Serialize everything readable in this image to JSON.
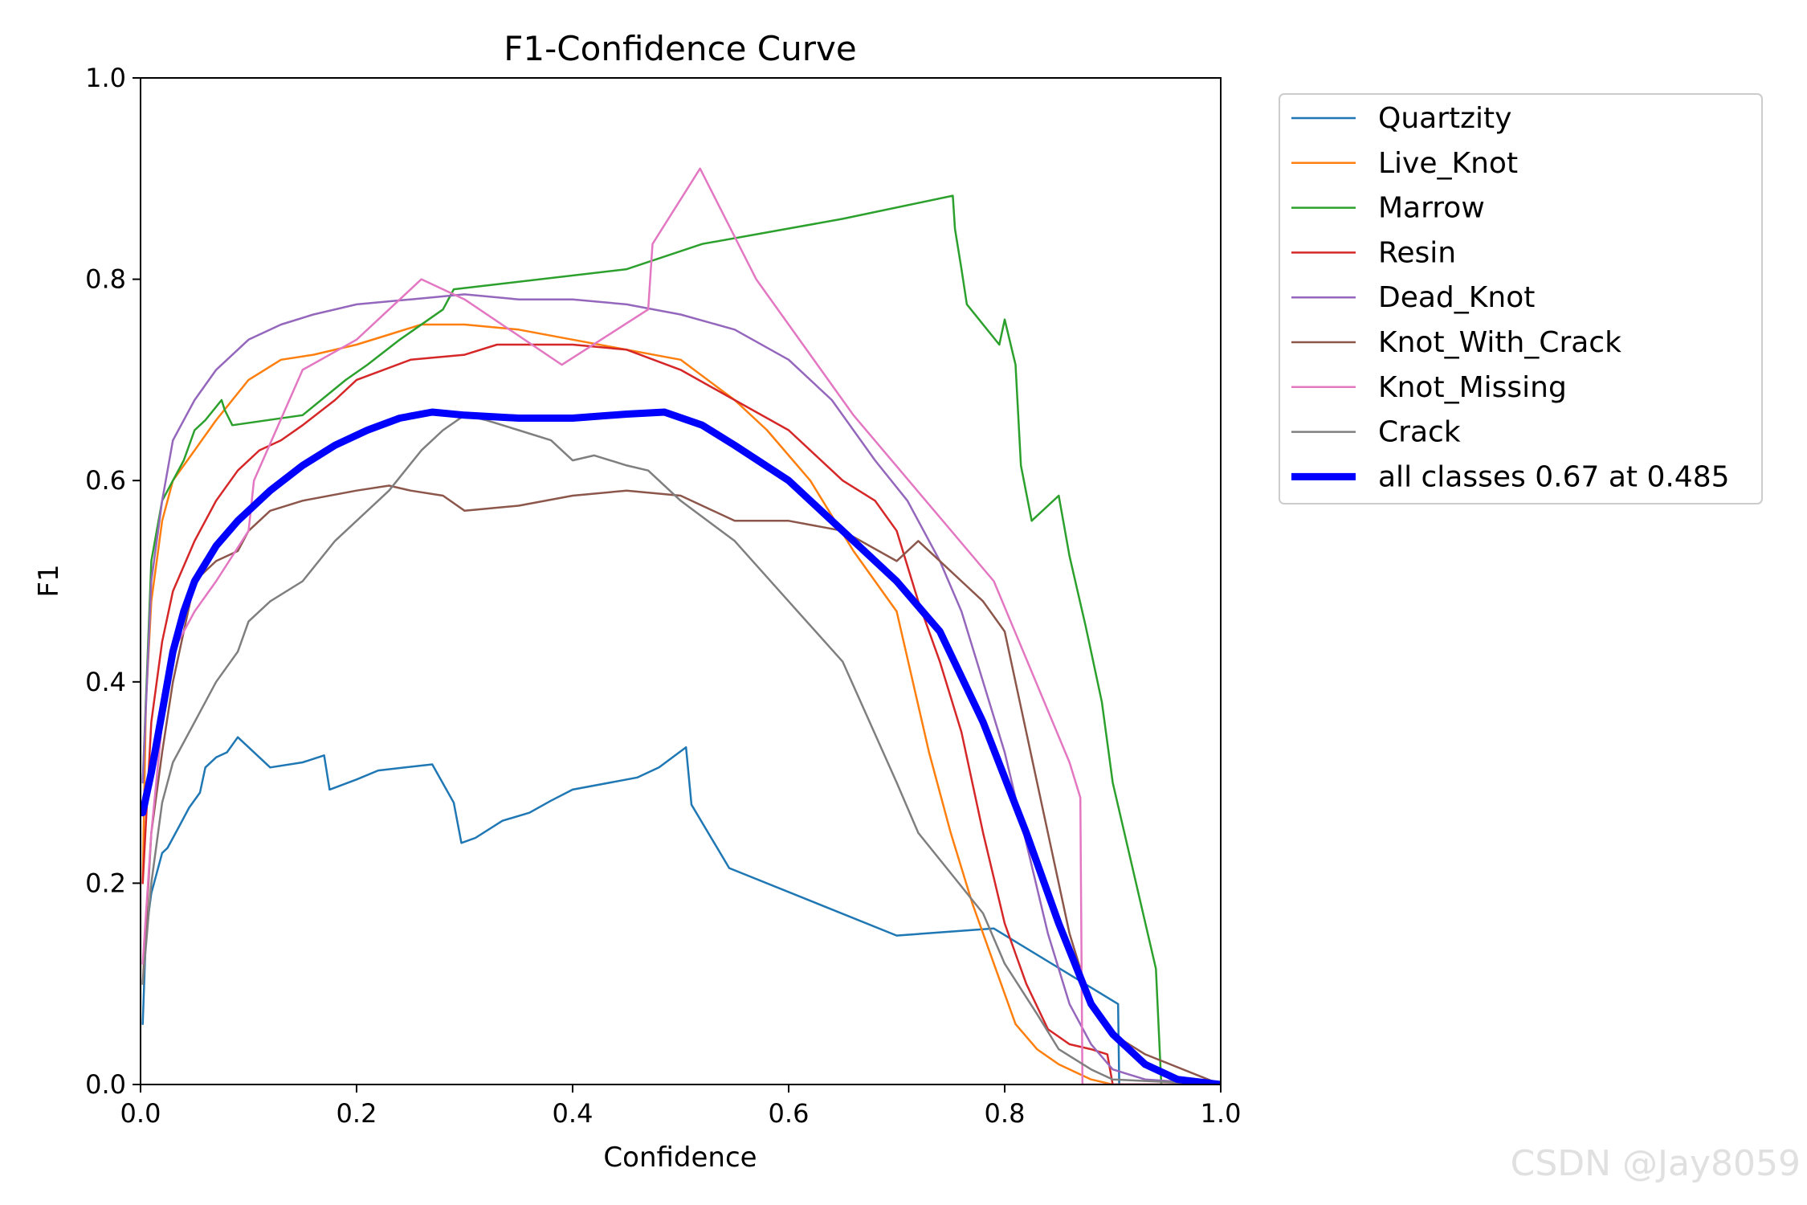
{
  "chart_data": {
    "type": "line",
    "title": "F1-Confidence Curve",
    "xlabel": "Confidence",
    "ylabel": "F1",
    "xlim": [
      0,
      1
    ],
    "ylim": [
      0,
      1
    ],
    "xticks": [
      0.0,
      0.2,
      0.4,
      0.6,
      0.8,
      1.0
    ],
    "yticks": [
      0.0,
      0.2,
      0.4,
      0.6,
      0.8,
      1.0
    ],
    "xtick_labels": [
      "0.0",
      "0.2",
      "0.4",
      "0.6",
      "0.8",
      "1.0"
    ],
    "ytick_labels": [
      "0.0",
      "0.2",
      "0.4",
      "0.6",
      "0.8",
      "1.0"
    ],
    "legend_position": "outside-right-top",
    "series": [
      {
        "name": "Quartzity",
        "color": "#1f77b4",
        "width": "thin",
        "x": [
          0.002,
          0.005,
          0.01,
          0.02,
          0.025,
          0.035,
          0.045,
          0.055,
          0.06,
          0.07,
          0.08,
          0.09,
          0.1,
          0.12,
          0.15,
          0.17,
          0.175,
          0.2,
          0.22,
          0.27,
          0.29,
          0.297,
          0.31,
          0.335,
          0.36,
          0.38,
          0.4,
          0.46,
          0.48,
          0.505,
          0.51,
          0.545,
          0.7,
          0.79,
          0.905,
          0.906,
          0.96,
          1.0
        ],
        "y": [
          0.06,
          0.15,
          0.19,
          0.23,
          0.235,
          0.255,
          0.275,
          0.29,
          0.315,
          0.325,
          0.33,
          0.345,
          0.335,
          0.315,
          0.32,
          0.327,
          0.293,
          0.303,
          0.312,
          0.318,
          0.28,
          0.24,
          0.245,
          0.262,
          0.27,
          0.282,
          0.293,
          0.305,
          0.315,
          0.335,
          0.278,
          0.215,
          0.148,
          0.155,
          0.08,
          0.0,
          0.0,
          0.0
        ]
      },
      {
        "name": "Live_Knot",
        "color": "#ff7f0e",
        "width": "thin",
        "x": [
          0.002,
          0.005,
          0.01,
          0.02,
          0.03,
          0.05,
          0.07,
          0.1,
          0.13,
          0.16,
          0.2,
          0.23,
          0.26,
          0.3,
          0.35,
          0.4,
          0.45,
          0.5,
          0.55,
          0.58,
          0.62,
          0.66,
          0.7,
          0.73,
          0.75,
          0.77,
          0.79,
          0.81,
          0.83,
          0.85,
          0.87,
          0.88,
          0.9,
          1.0
        ],
        "y": [
          0.2,
          0.38,
          0.48,
          0.56,
          0.6,
          0.63,
          0.66,
          0.7,
          0.72,
          0.725,
          0.735,
          0.745,
          0.755,
          0.755,
          0.75,
          0.74,
          0.73,
          0.72,
          0.68,
          0.65,
          0.6,
          0.53,
          0.47,
          0.33,
          0.25,
          0.18,
          0.12,
          0.06,
          0.035,
          0.02,
          0.01,
          0.005,
          0.0,
          0.0
        ]
      },
      {
        "name": "Marrow",
        "color": "#2ca02c",
        "width": "thin",
        "x": [
          0.002,
          0.01,
          0.02,
          0.03,
          0.04,
          0.05,
          0.06,
          0.075,
          0.078,
          0.085,
          0.15,
          0.19,
          0.21,
          0.24,
          0.28,
          0.29,
          0.45,
          0.52,
          0.65,
          0.752,
          0.754,
          0.76,
          0.765,
          0.795,
          0.8,
          0.81,
          0.815,
          0.825,
          0.85,
          0.86,
          0.875,
          0.89,
          0.9,
          0.94,
          0.945,
          0.95,
          1.0
        ],
        "y": [
          0.3,
          0.52,
          0.58,
          0.6,
          0.62,
          0.65,
          0.66,
          0.68,
          0.67,
          0.655,
          0.665,
          0.7,
          0.715,
          0.74,
          0.77,
          0.79,
          0.81,
          0.835,
          0.86,
          0.883,
          0.85,
          0.81,
          0.775,
          0.735,
          0.76,
          0.715,
          0.615,
          0.56,
          0.585,
          0.525,
          0.455,
          0.38,
          0.3,
          0.115,
          0.0,
          0.0,
          0.0
        ]
      },
      {
        "name": "Resin",
        "color": "#d62728",
        "width": "thin",
        "x": [
          0.002,
          0.01,
          0.02,
          0.03,
          0.05,
          0.07,
          0.09,
          0.11,
          0.13,
          0.15,
          0.18,
          0.2,
          0.25,
          0.3,
          0.33,
          0.36,
          0.4,
          0.45,
          0.5,
          0.55,
          0.6,
          0.65,
          0.68,
          0.7,
          0.72,
          0.74,
          0.76,
          0.78,
          0.8,
          0.82,
          0.84,
          0.86,
          0.88,
          0.895,
          0.9,
          1.0
        ],
        "y": [
          0.2,
          0.36,
          0.44,
          0.49,
          0.54,
          0.58,
          0.61,
          0.63,
          0.64,
          0.655,
          0.68,
          0.7,
          0.72,
          0.725,
          0.735,
          0.735,
          0.735,
          0.73,
          0.71,
          0.68,
          0.65,
          0.6,
          0.58,
          0.55,
          0.48,
          0.42,
          0.35,
          0.25,
          0.16,
          0.1,
          0.055,
          0.04,
          0.035,
          0.03,
          0.0,
          0.0
        ]
      },
      {
        "name": "Dead_Knot",
        "color": "#9467bd",
        "width": "thin",
        "x": [
          0.002,
          0.01,
          0.02,
          0.03,
          0.05,
          0.07,
          0.1,
          0.13,
          0.16,
          0.2,
          0.25,
          0.3,
          0.35,
          0.4,
          0.45,
          0.5,
          0.55,
          0.6,
          0.64,
          0.68,
          0.71,
          0.74,
          0.76,
          0.78,
          0.8,
          0.82,
          0.84,
          0.86,
          0.88,
          0.9,
          0.93,
          1.0
        ],
        "y": [
          0.3,
          0.5,
          0.58,
          0.64,
          0.68,
          0.71,
          0.74,
          0.755,
          0.765,
          0.775,
          0.78,
          0.785,
          0.78,
          0.78,
          0.775,
          0.765,
          0.75,
          0.72,
          0.68,
          0.62,
          0.58,
          0.52,
          0.47,
          0.4,
          0.33,
          0.24,
          0.15,
          0.08,
          0.04,
          0.015,
          0.005,
          0.0
        ]
      },
      {
        "name": "Knot_With_Crack",
        "color": "#8c564b",
        "width": "thin",
        "x": [
          0.002,
          0.01,
          0.02,
          0.03,
          0.04,
          0.05,
          0.07,
          0.09,
          0.1,
          0.12,
          0.15,
          0.2,
          0.23,
          0.25,
          0.28,
          0.3,
          0.35,
          0.4,
          0.45,
          0.5,
          0.55,
          0.6,
          0.65,
          0.7,
          0.72,
          0.74,
          0.76,
          0.78,
          0.8,
          0.82,
          0.84,
          0.86,
          0.88,
          0.9,
          0.93,
          1.0
        ],
        "y": [
          0.1,
          0.25,
          0.33,
          0.4,
          0.45,
          0.5,
          0.52,
          0.53,
          0.55,
          0.57,
          0.58,
          0.59,
          0.595,
          0.59,
          0.585,
          0.57,
          0.575,
          0.585,
          0.59,
          0.585,
          0.56,
          0.56,
          0.55,
          0.52,
          0.54,
          0.52,
          0.5,
          0.48,
          0.45,
          0.35,
          0.25,
          0.15,
          0.08,
          0.05,
          0.03,
          0.0
        ]
      },
      {
        "name": "Knot_Missing",
        "color": "#e377c2",
        "width": "thin",
        "x": [
          0.002,
          0.01,
          0.02,
          0.03,
          0.05,
          0.07,
          0.1,
          0.105,
          0.15,
          0.2,
          0.26,
          0.3,
          0.39,
          0.47,
          0.474,
          0.518,
          0.57,
          0.66,
          0.79,
          0.86,
          0.87,
          0.872,
          0.9,
          1.0
        ],
        "y": [
          0.12,
          0.25,
          0.36,
          0.43,
          0.47,
          0.5,
          0.55,
          0.6,
          0.71,
          0.74,
          0.8,
          0.78,
          0.715,
          0.77,
          0.835,
          0.91,
          0.8,
          0.665,
          0.5,
          0.32,
          0.285,
          0.0,
          0.0,
          0.0
        ]
      },
      {
        "name": "Crack",
        "color": "#7f7f7f",
        "width": "thin",
        "x": [
          0.002,
          0.01,
          0.02,
          0.03,
          0.05,
          0.07,
          0.09,
          0.1,
          0.12,
          0.15,
          0.18,
          0.2,
          0.23,
          0.26,
          0.28,
          0.3,
          0.32,
          0.35,
          0.38,
          0.4,
          0.42,
          0.45,
          0.47,
          0.5,
          0.55,
          0.6,
          0.65,
          0.7,
          0.72,
          0.75,
          0.78,
          0.8,
          0.83,
          0.85,
          0.88,
          0.9,
          1.0
        ],
        "y": [
          0.1,
          0.2,
          0.28,
          0.32,
          0.36,
          0.4,
          0.43,
          0.46,
          0.48,
          0.5,
          0.54,
          0.56,
          0.59,
          0.63,
          0.65,
          0.665,
          0.66,
          0.65,
          0.64,
          0.62,
          0.625,
          0.615,
          0.61,
          0.58,
          0.54,
          0.48,
          0.42,
          0.3,
          0.25,
          0.21,
          0.17,
          0.12,
          0.07,
          0.035,
          0.015,
          0.005,
          0.0
        ]
      },
      {
        "name": "all classes 0.67 at 0.485",
        "color": "#0000ff",
        "width": "thick",
        "x": [
          0.002,
          0.01,
          0.02,
          0.03,
          0.04,
          0.05,
          0.07,
          0.09,
          0.12,
          0.15,
          0.18,
          0.21,
          0.24,
          0.27,
          0.3,
          0.35,
          0.4,
          0.45,
          0.485,
          0.52,
          0.55,
          0.6,
          0.65,
          0.7,
          0.74,
          0.78,
          0.82,
          0.85,
          0.88,
          0.9,
          0.93,
          0.96,
          1.0
        ],
        "y": [
          0.27,
          0.31,
          0.37,
          0.43,
          0.47,
          0.5,
          0.535,
          0.56,
          0.59,
          0.615,
          0.635,
          0.65,
          0.662,
          0.668,
          0.665,
          0.662,
          0.662,
          0.666,
          0.668,
          0.655,
          0.635,
          0.6,
          0.55,
          0.5,
          0.45,
          0.36,
          0.25,
          0.16,
          0.08,
          0.05,
          0.02,
          0.005,
          0.0
        ]
      }
    ]
  },
  "watermark": "CSDN @Jay8059"
}
